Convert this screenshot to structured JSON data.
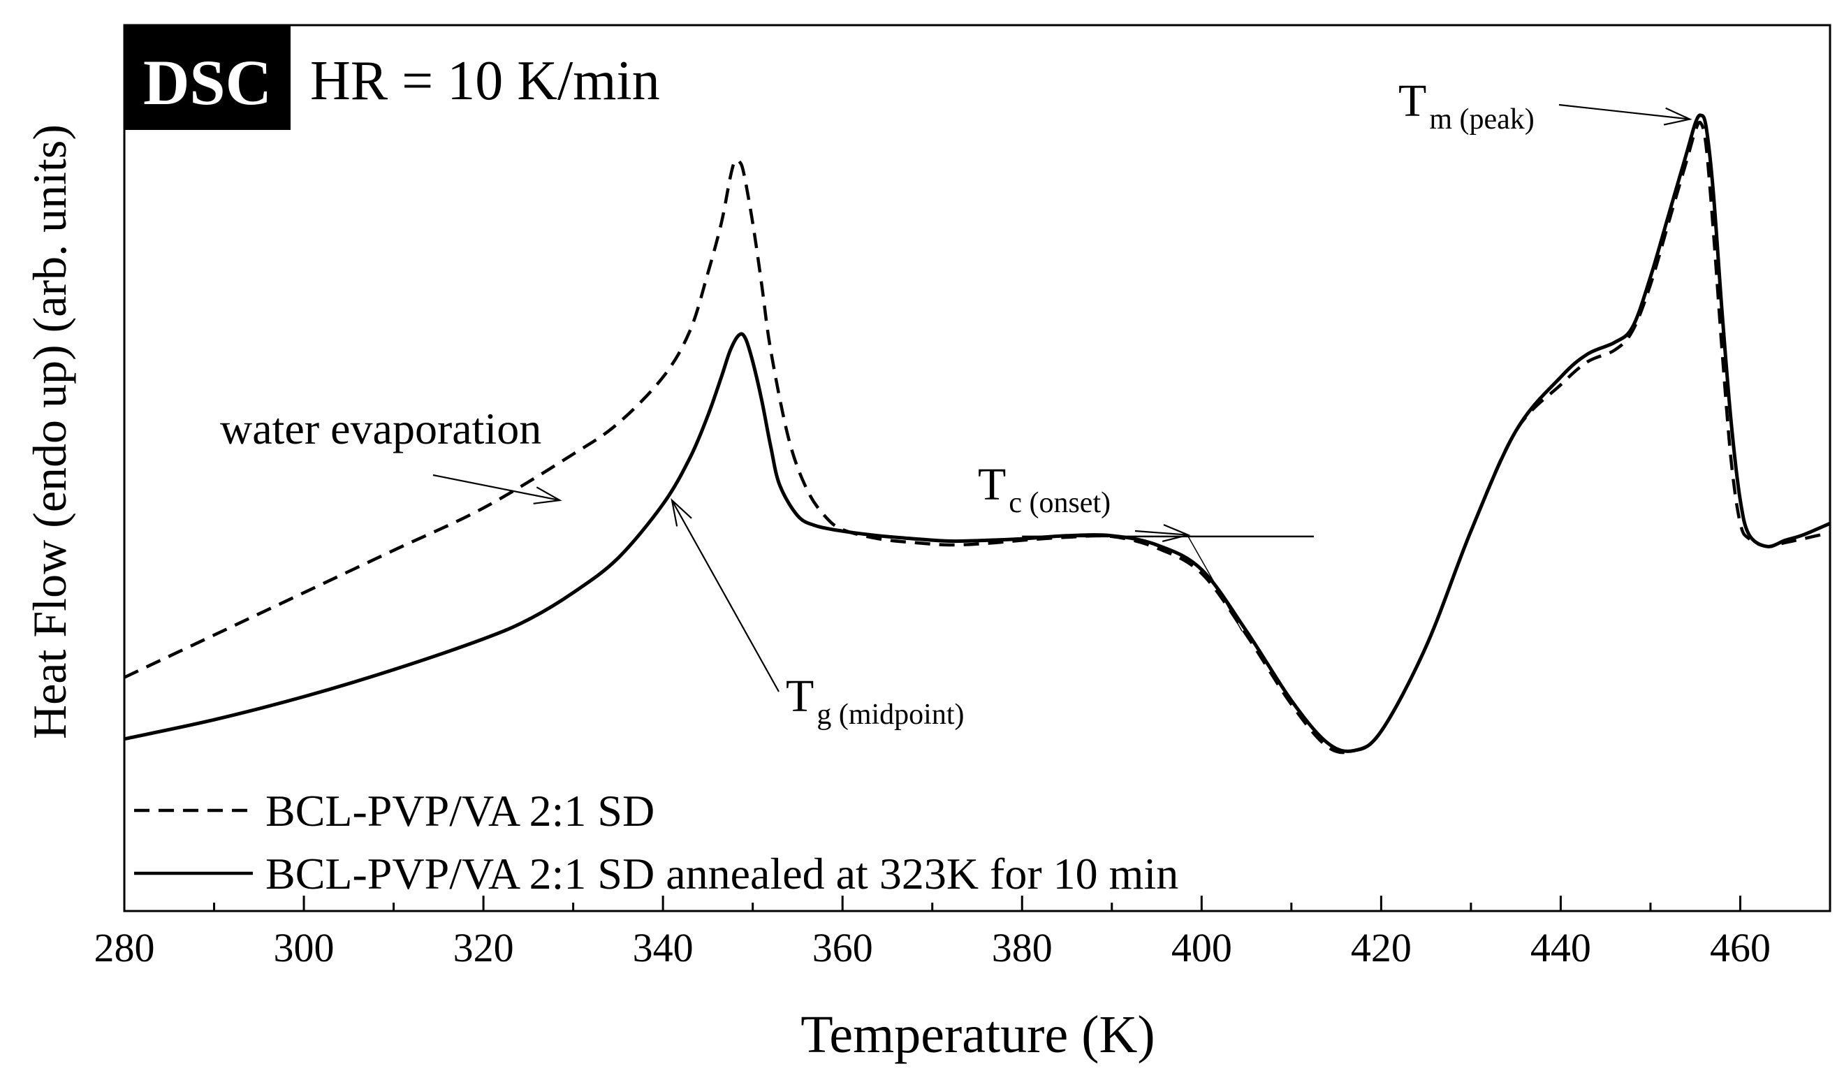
{
  "chart_data": {
    "type": "line",
    "badge": "DSC",
    "subtitle": "HR = 10 K/min",
    "xlabel": "Temperature (K)",
    "ylabel": "Heat Flow (endo up) (arb. units)",
    "xlim": [
      280,
      470
    ],
    "ylim": [
      0,
      100
    ],
    "x_ticks": [
      280,
      300,
      320,
      340,
      360,
      380,
      400,
      420,
      440,
      460
    ],
    "y_ticks_shown": false,
    "series": [
      {
        "name": "BCL-PVP/VA 2:1 SD",
        "style": "dashed",
        "color": "#000000",
        "x": [
          280,
          290,
          300,
          310,
          320,
          330,
          335,
          340,
          343,
          345,
          346.5,
          347.5,
          348,
          348.5,
          349,
          350,
          351,
          352,
          354,
          356,
          358,
          360,
          364,
          368,
          372,
          376,
          380,
          385,
          390,
          395,
          400,
          405,
          410,
          414,
          417,
          420,
          425,
          430,
          435,
          440,
          443,
          446,
          448,
          450,
          452,
          454,
          455,
          455.6,
          456.2,
          457,
          458,
          459,
          460,
          461,
          463,
          465,
          467,
          470
        ],
        "y": [
          22,
          27.5,
          33,
          38.5,
          44,
          51,
          55,
          61,
          67,
          74.5,
          81,
          87,
          89,
          89,
          87.5,
          81,
          73,
          64.5,
          53,
          46.5,
          43,
          41.2,
          40,
          39.5,
          39.2,
          39.4,
          39.8,
          40.2,
          40.3,
          38.8,
          35.5,
          27.5,
          18.5,
          13,
          12.5,
          15,
          26,
          41,
          54,
          60,
          63,
          64.5,
          67,
          73,
          81,
          89,
          93,
          94,
          91,
          80,
          64,
          50,
          42,
          40,
          39,
          39.5,
          40,
          40.8
        ]
      },
      {
        "name": "BCL-PVP/VA 2:1 SD annealed at 323K for 10 min",
        "style": "solid",
        "color": "#000000",
        "x": [
          280,
          290,
          300,
          310,
          320,
          325,
          330,
          335,
          340,
          343,
          345,
          346.5,
          347.5,
          348.5,
          349.2,
          350,
          351,
          352,
          353,
          355,
          357,
          360,
          364,
          368,
          372,
          376,
          380,
          385,
          390,
          395,
          400,
          405,
          410,
          414,
          417,
          420,
          425,
          430,
          435,
          440,
          443,
          446,
          448,
          450,
          452,
          454,
          455,
          455.6,
          456.2,
          457,
          458,
          459,
          460,
          461,
          463,
          465,
          467,
          470
        ],
        "y": [
          14,
          16.5,
          19.5,
          23,
          27,
          29.5,
          33,
          37.5,
          44.5,
          50.5,
          56,
          61,
          64.5,
          66.5,
          66,
          63,
          58,
          52,
          47,
          43,
          41.7,
          41,
          40.4,
          40,
          39.7,
          39.8,
          40,
          40.4,
          40.4,
          39.2,
          36,
          28,
          19,
          13.5,
          12.5,
          15,
          26,
          41,
          54,
          61,
          64,
          65.5,
          67.5,
          74,
          82,
          90,
          94,
          95,
          93.5,
          85,
          69,
          55,
          45,
          40.5,
          39,
          39.8,
          40.5,
          42
        ]
      }
    ],
    "legend": {
      "placement": "bottom-left",
      "entries": [
        {
          "label": "BCL-PVP/VA 2:1 SD",
          "style": "dashed"
        },
        {
          "label": "BCL-PVP/VA 2:1 SD annealed at 323K for 10 min",
          "style": "solid"
        }
      ]
    },
    "annotations": [
      {
        "id": "water",
        "text": "water evaporation",
        "arrow_to": [
          328.5,
          45
        ]
      },
      {
        "id": "tg",
        "text": "T",
        "sub": "g (midpoint)",
        "arrow_to": [
          341,
          45
        ]
      },
      {
        "id": "tc",
        "text": "T",
        "sub": "c (onset)",
        "arrow_to": [
          398.5,
          40.5
        ]
      },
      {
        "id": "tm",
        "text": "T",
        "sub": "m (peak)",
        "arrow_to": [
          455,
          94.5
        ]
      }
    ],
    "onset_construction": {
      "baseline": {
        "x1": 380,
        "x2": 412.5,
        "y": 40.3
      },
      "tangent": {
        "x1": 398.5,
        "y1": 40.3,
        "x2": 404.5,
        "y2": 28
      }
    }
  }
}
